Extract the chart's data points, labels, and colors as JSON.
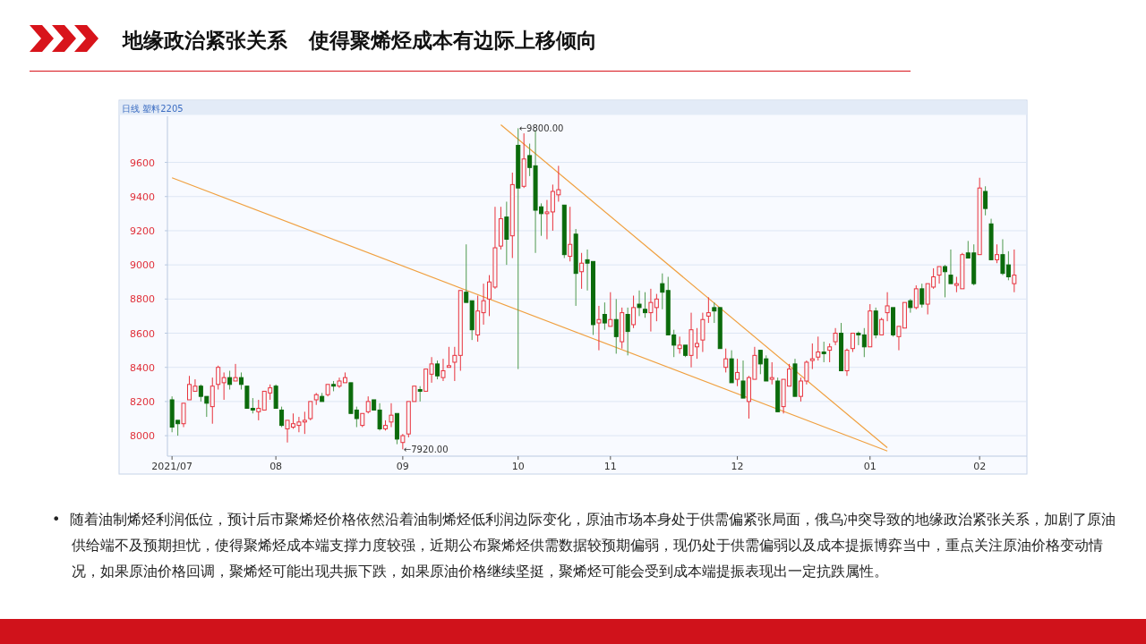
{
  "chart_data": {
    "type": "candlestick",
    "title": "地缘政治紧张关系   使得聚烯烃成本有边际上移倾向",
    "subtitle": "日线 塑料2205",
    "categories": [
      "2021/07",
      null,
      null,
      null,
      null,
      null,
      null,
      null,
      null,
      null,
      null,
      null,
      null,
      null,
      null,
      null,
      null,
      null,
      "08",
      null,
      null,
      null,
      null,
      null,
      null,
      null,
      null,
      null,
      null,
      null,
      null,
      null,
      null,
      null,
      null,
      null,
      null,
      null,
      null,
      null,
      "09",
      null,
      null,
      null,
      null,
      null,
      null,
      null,
      null,
      null,
      null,
      null,
      null,
      null,
      null,
      null,
      null,
      null,
      null,
      null,
      "10",
      null,
      null,
      null,
      null,
      null,
      null,
      null,
      null,
      null,
      null,
      null,
      null,
      null,
      null,
      null,
      "11",
      null,
      null,
      null,
      null,
      null,
      null,
      null,
      null,
      null,
      null,
      null,
      null,
      null,
      null,
      null,
      null,
      null,
      null,
      null,
      null,
      null,
      "12",
      null,
      null,
      null,
      null,
      null,
      null,
      null,
      null,
      null,
      null,
      null,
      null,
      null,
      null,
      null,
      null,
      null,
      null,
      null,
      null,
      null,
      null,
      "01",
      null,
      null,
      null,
      null,
      null,
      null,
      null,
      null,
      null,
      null,
      null,
      null,
      null,
      null,
      null,
      null,
      null,
      null,
      "02",
      null,
      null,
      null,
      null,
      null,
      null
    ],
    "ohlc": [
      [
        8210,
        8230,
        8020,
        8050
      ],
      [
        8090,
        8090,
        8000,
        8070
      ],
      [
        8070,
        8190,
        8050,
        8190
      ],
      [
        8210,
        8350,
        8210,
        8300
      ],
      [
        8260,
        8330,
        8260,
        8290
      ],
      [
        8290,
        8300,
        8200,
        8230
      ],
      [
        8230,
        8230,
        8110,
        8190
      ],
      [
        8170,
        8340,
        8070,
        8290
      ],
      [
        8300,
        8410,
        8270,
        8400
      ],
      [
        8310,
        8370,
        8210,
        8340
      ],
      [
        8340,
        8380,
        8270,
        8300
      ],
      [
        8320,
        8420,
        8320,
        8340
      ],
      [
        8340,
        8370,
        8270,
        8300
      ],
      [
        8290,
        8290,
        8160,
        8160
      ],
      [
        8160,
        8220,
        8130,
        8150
      ],
      [
        8140,
        8210,
        8090,
        8160
      ],
      [
        8150,
        8260,
        8150,
        8260
      ],
      [
        8250,
        8300,
        8210,
        8280
      ],
      [
        8290,
        8300,
        8160,
        8160
      ],
      [
        8150,
        8170,
        8050,
        8060
      ],
      [
        8040,
        8090,
        7960,
        8090
      ],
      [
        8050,
        8130,
        8040,
        8070
      ],
      [
        8060,
        8110,
        8020,
        8080
      ],
      [
        8080,
        8140,
        8010,
        8090
      ],
      [
        8100,
        8200,
        8090,
        8200
      ],
      [
        8210,
        8250,
        8180,
        8240
      ],
      [
        8230,
        8250,
        8200,
        8200
      ],
      [
        8240,
        8300,
        8230,
        8300
      ],
      [
        8300,
        8320,
        8260,
        8290
      ],
      [
        8290,
        8340,
        8280,
        8320
      ],
      [
        8310,
        8370,
        8310,
        8340
      ],
      [
        8310,
        8310,
        8130,
        8130
      ],
      [
        8150,
        8170,
        8050,
        8100
      ],
      [
        8060,
        8130,
        8050,
        8130
      ],
      [
        8140,
        8230,
        8130,
        8200
      ],
      [
        8210,
        8210,
        8150,
        8150
      ],
      [
        8150,
        8190,
        8030,
        8040
      ],
      [
        8040,
        8090,
        8030,
        8060
      ],
      [
        8080,
        8190,
        8050,
        8120
      ],
      [
        8130,
        8130,
        7950,
        7980
      ],
      [
        7960,
        8010,
        7920,
        8000
      ],
      [
        8010,
        8200,
        7990,
        8200
      ],
      [
        8200,
        8290,
        8200,
        8290
      ],
      [
        8270,
        8290,
        8200,
        8260
      ],
      [
        8260,
        8390,
        8260,
        8390
      ],
      [
        8360,
        8460,
        8310,
        8420
      ],
      [
        8420,
        8440,
        8330,
        8350
      ],
      [
        8340,
        8450,
        8320,
        8380
      ],
      [
        8400,
        8520,
        8400,
        8410
      ],
      [
        8430,
        8520,
        8320,
        8470
      ],
      [
        8470,
        8850,
        8380,
        8850
      ],
      [
        8840,
        9120,
        8780,
        8780
      ],
      [
        8790,
        8790,
        8560,
        8620
      ],
      [
        8590,
        8820,
        8550,
        8730
      ],
      [
        8720,
        8890,
        8650,
        8790
      ],
      [
        8800,
        8940,
        8700,
        8900
      ],
      [
        8870,
        9340,
        8860,
        9100
      ],
      [
        9110,
        9340,
        9090,
        9270
      ],
      [
        9280,
        9370,
        9000,
        9150
      ],
      [
        9170,
        9540,
        9040,
        9470
      ],
      [
        9700,
        9800,
        8390,
        9450
      ],
      [
        9460,
        9770,
        9450,
        9620
      ],
      [
        9640,
        9710,
        9520,
        9570
      ],
      [
        9580,
        9790,
        9070,
        9320
      ],
      [
        9340,
        9360,
        9170,
        9300
      ],
      [
        9300,
        9380,
        9150,
        9310
      ],
      [
        9310,
        9470,
        9200,
        9430
      ],
      [
        9410,
        9580,
        9370,
        9440
      ],
      [
        9350,
        9350,
        9040,
        9060
      ],
      [
        9050,
        9340,
        9020,
        9120
      ],
      [
        9180,
        9210,
        8760,
        8950
      ],
      [
        8960,
        9070,
        8860,
        9010
      ],
      [
        9030,
        9090,
        8850,
        9010
      ],
      [
        9020,
        9020,
        8590,
        8650
      ],
      [
        8660,
        8760,
        8500,
        8680
      ],
      [
        8710,
        8780,
        8620,
        8660
      ],
      [
        8640,
        8840,
        8640,
        8680
      ],
      [
        8680,
        8800,
        8480,
        8580
      ],
      [
        8550,
        8750,
        8510,
        8720
      ],
      [
        8710,
        8750,
        8470,
        8610
      ],
      [
        8650,
        8820,
        8630,
        8750
      ],
      [
        8770,
        8850,
        8700,
        8750
      ],
      [
        8740,
        8840,
        8690,
        8720
      ],
      [
        8720,
        8860,
        8610,
        8780
      ],
      [
        8750,
        8830,
        8670,
        8800
      ],
      [
        8890,
        8950,
        8740,
        8840
      ],
      [
        8850,
        8930,
        8590,
        8590
      ],
      [
        8590,
        8620,
        8460,
        8530
      ],
      [
        8510,
        8580,
        8480,
        8530
      ],
      [
        8530,
        8530,
        8460,
        8470
      ],
      [
        8470,
        8720,
        8400,
        8620
      ],
      [
        8520,
        8630,
        8450,
        8540
      ],
      [
        8560,
        8720,
        8490,
        8680
      ],
      [
        8700,
        8810,
        8660,
        8720
      ],
      [
        8750,
        8780,
        8660,
        8730
      ],
      [
        8750,
        8750,
        8510,
        8510
      ],
      [
        8400,
        8510,
        8370,
        8450
      ],
      [
        8450,
        8500,
        8310,
        8310
      ],
      [
        8330,
        8450,
        8290,
        8370
      ],
      [
        8320,
        8440,
        8220,
        8220
      ],
      [
        8200,
        8350,
        8100,
        8340
      ],
      [
        8330,
        8520,
        8330,
        8470
      ],
      [
        8500,
        8500,
        8360,
        8420
      ],
      [
        8450,
        8470,
        8320,
        8320
      ],
      [
        8330,
        8430,
        8300,
        8340
      ],
      [
        8320,
        8340,
        8140,
        8140
      ],
      [
        8170,
        8330,
        8130,
        8330
      ],
      [
        8290,
        8420,
        8290,
        8390
      ],
      [
        8420,
        8450,
        8230,
        8230
      ],
      [
        8230,
        8340,
        8200,
        8320
      ],
      [
        8320,
        8440,
        8300,
        8430
      ],
      [
        8440,
        8540,
        8390,
        8450
      ],
      [
        8460,
        8580,
        8440,
        8490
      ],
      [
        8490,
        8550,
        8430,
        8480
      ],
      [
        8500,
        8540,
        8430,
        8520
      ],
      [
        8550,
        8630,
        8530,
        8600
      ],
      [
        8600,
        8660,
        8380,
        8380
      ],
      [
        8380,
        8510,
        8350,
        8500
      ],
      [
        8510,
        8600,
        8490,
        8600
      ],
      [
        8600,
        8610,
        8530,
        8590
      ],
      [
        8590,
        8630,
        8460,
        8520
      ],
      [
        8520,
        8770,
        8520,
        8730
      ],
      [
        8730,
        8750,
        8570,
        8590
      ],
      [
        8590,
        8690,
        8590,
        8680
      ],
      [
        8720,
        8840,
        8670,
        8760
      ],
      [
        8750,
        8750,
        8580,
        8590
      ],
      [
        8580,
        8640,
        8500,
        8640
      ],
      [
        8630,
        8780,
        8630,
        8780
      ],
      [
        8790,
        8800,
        8720,
        8750
      ],
      [
        8750,
        8880,
        8740,
        8860
      ],
      [
        8860,
        8890,
        8750,
        8770
      ],
      [
        8770,
        8890,
        8710,
        8890
      ],
      [
        8870,
        8980,
        8860,
        8930
      ],
      [
        8940,
        8990,
        8890,
        8990
      ],
      [
        8990,
        9000,
        8810,
        8960
      ],
      [
        8940,
        9090,
        8890,
        8890
      ],
      [
        8880,
        8930,
        8840,
        8890
      ],
      [
        8860,
        9070,
        8860,
        9060
      ],
      [
        9070,
        9140,
        9040,
        9040
      ],
      [
        9070,
        9120,
        8880,
        8890
      ],
      [
        9060,
        9510,
        9060,
        9450
      ],
      [
        9430,
        9460,
        9290,
        9330
      ],
      [
        9240,
        9270,
        9030,
        9030
      ],
      [
        9030,
        9120,
        9010,
        9060
      ],
      [
        9060,
        9150,
        8940,
        8950
      ],
      [
        9000,
        9080,
        8910,
        8930
      ],
      [
        8890,
        9090,
        8840,
        8940
      ]
    ],
    "series": [
      {
        "type": "line",
        "color": "#f0a040",
        "values": [
          9510,
          null,
          null,
          null,
          null,
          null,
          null,
          null,
          null,
          null,
          null,
          null,
          null,
          null,
          null,
          null,
          null,
          null,
          null,
          null,
          null,
          null,
          null,
          null,
          null,
          null,
          null,
          null,
          null,
          null,
          null,
          null,
          null,
          null,
          null,
          null,
          null,
          null,
          null,
          null,
          null,
          null,
          null,
          null,
          null,
          null,
          null,
          null,
          null,
          null,
          null,
          null,
          null,
          null,
          null,
          null,
          null,
          null,
          null,
          null,
          null,
          null,
          null,
          null,
          null,
          null,
          null,
          null,
          null,
          null,
          null,
          null,
          null,
          null,
          null,
          null,
          null,
          null,
          null,
          null,
          null,
          null,
          null,
          null,
          null,
          null,
          null,
          null,
          null,
          null,
          null,
          null,
          null,
          null,
          null,
          null,
          null,
          null,
          null,
          null,
          null,
          null,
          null,
          null,
          null,
          null,
          null,
          null,
          null,
          null,
          null,
          null,
          null,
          null,
          null,
          null,
          null,
          null,
          null,
          null,
          null,
          null,
          null,
          null,
          7910,
          null,
          null,
          null,
          null,
          null,
          null,
          null,
          null,
          null,
          null,
          null,
          null,
          null,
          null,
          null,
          null,
          null,
          null,
          null,
          null,
          null,
          null
        ]
      },
      {
        "type": "line",
        "color": "#f0a040",
        "values": [
          null,
          null,
          null,
          null,
          null,
          null,
          null,
          null,
          null,
          null,
          null,
          null,
          null,
          null,
          null,
          null,
          null,
          null,
          null,
          null,
          null,
          null,
          null,
          null,
          null,
          null,
          null,
          null,
          null,
          null,
          null,
          null,
          null,
          null,
          null,
          null,
          null,
          null,
          null,
          null,
          null,
          null,
          null,
          null,
          null,
          null,
          null,
          null,
          null,
          null,
          null,
          null,
          null,
          null,
          null,
          null,
          null,
          9820,
          null,
          null,
          null,
          null,
          null,
          null,
          null,
          null,
          null,
          null,
          null,
          null,
          null,
          null,
          null,
          null,
          null,
          null,
          null,
          null,
          null,
          null,
          null,
          null,
          null,
          null,
          null,
          null,
          null,
          null,
          null,
          null,
          null,
          null,
          null,
          null,
          null,
          null,
          null,
          null,
          null,
          null,
          null,
          null,
          null,
          null,
          null,
          null,
          null,
          null,
          null,
          null,
          null,
          null,
          null,
          null,
          null,
          null,
          null,
          null,
          null,
          null,
          null,
          null,
          null,
          null,
          7930,
          null,
          null,
          null,
          null,
          null,
          null,
          null,
          null,
          null,
          null,
          null,
          null,
          null,
          null,
          null,
          null,
          null,
          null,
          null,
          null,
          null,
          null
        ]
      }
    ],
    "ylim": [
      7880,
      9870
    ],
    "yticks": [
      8000,
      8200,
      8400,
      8600,
      8800,
      9000,
      9200,
      9400,
      9600
    ],
    "grid": "y",
    "annotations": [
      {
        "text": "←9800.00",
        "x": "10",
        "y": 9800
      },
      {
        "text": "←7920.00",
        "x": "09",
        "y": 7920
      },
      "•  随着油制烯烃利润低位，预计后市聚烯烃价格依然沿着油制烯烃低利润边际变化，原油市场本身处于供需偏紧张局面，俄乌冲突导致的地缘政治紧张关系，加剧了原油供给端不及预期担忧，使得聚烯烃成本端支撑力度较强，近期公布聚烯烃供需数据较预期偏弱，现仍处于供需偏弱以及成本提振博弈当中，重点关注原油价格变动情况，如果原油价格回调，聚烯烃可能出现共振下跌，如果原油价格继续坚挺，聚烯烃可能会受到成本端提振表现出一定抗跌属性。"
    ]
  }
}
